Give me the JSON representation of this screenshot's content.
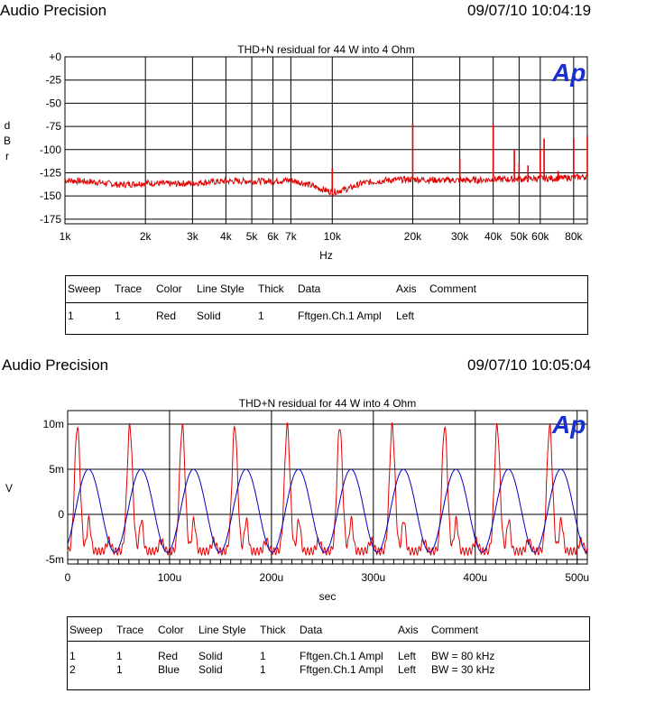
{
  "header1": {
    "brand": "Audio Precision",
    "timestamp": "09/07/10 10:04:19"
  },
  "header2": {
    "brand": "Audio Precision",
    "timestamp": "09/07/10 10:05:04"
  },
  "logo": "Ap",
  "colors": {
    "red": "#e00000",
    "blue": "#0000c0",
    "logo": "#1a2fd0"
  },
  "chart_data": [
    {
      "type": "line",
      "title": "THD+N residual for 44 W into 4 Ohm",
      "xlabel": "Hz",
      "ylabel": "d B r",
      "xscale": "log",
      "xlim": [
        1000,
        90000
      ],
      "ylim": [
        -180,
        0
      ],
      "x_ticks": [
        1000,
        2000,
        3000,
        4000,
        5000,
        6000,
        7000,
        10000,
        20000,
        30000,
        40000,
        50000,
        60000,
        80000
      ],
      "x_tick_labels": [
        "1k",
        "2k",
        "3k",
        "4k",
        "5k",
        "6k",
        "7k",
        "10k",
        "20k",
        "30k",
        "40k",
        "50k",
        "60k",
        "80k"
      ],
      "y_ticks": [
        0,
        -25,
        -50,
        -75,
        -100,
        -125,
        -150,
        -175
      ],
      "y_tick_labels": [
        "+0",
        "-25",
        "-50",
        "-75",
        "-100",
        "-125",
        "-150",
        "-175"
      ],
      "grid": true,
      "series": [
        {
          "color": "#e00000",
          "baseline": [
            [
              1000,
              -133
            ],
            [
              1300,
              -135
            ],
            [
              1600,
              -138
            ],
            [
              2000,
              -136
            ],
            [
              2500,
              -137
            ],
            [
              3000,
              -136
            ],
            [
              3500,
              -135
            ],
            [
              4000,
              -134
            ],
            [
              5000,
              -134
            ],
            [
              6000,
              -134
            ],
            [
              7000,
              -133
            ],
            [
              8000,
              -137
            ],
            [
              9000,
              -142
            ],
            [
              10000,
              -146
            ],
            [
              11500,
              -142
            ],
            [
              13000,
              -136
            ],
            [
              16000,
              -133
            ],
            [
              20000,
              -132
            ],
            [
              25000,
              -133
            ],
            [
              30000,
              -133
            ],
            [
              35000,
              -133
            ],
            [
              40000,
              -132
            ],
            [
              45000,
              -132
            ],
            [
              50000,
              -132
            ],
            [
              60000,
              -131
            ],
            [
              70000,
              -131
            ],
            [
              80000,
              -130
            ],
            [
              90000,
              -129
            ]
          ],
          "spikes": [
            [
              10000,
              -120
            ],
            [
              20000,
              -72
            ],
            [
              30000,
              -110
            ],
            [
              40000,
              -73
            ],
            [
              48000,
              -100
            ],
            [
              50000,
              -115
            ],
            [
              54000,
              -117
            ],
            [
              60000,
              -100
            ],
            [
              62000,
              -88
            ],
            [
              70000,
              -123
            ],
            [
              80000,
              -88
            ],
            [
              90000,
              -85
            ]
          ]
        }
      ]
    },
    {
      "type": "line",
      "title": "THD+N residual for 44 W into 4 Ohm",
      "xlabel": "sec",
      "ylabel": "V",
      "xlim": [
        0,
        0.00051
      ],
      "ylim": [
        -0.0055,
        0.0115
      ],
      "x_ticks": [
        0,
        0.0001,
        0.0002,
        0.0003,
        0.0004,
        0.0005
      ],
      "x_tick_labels": [
        "0",
        "100u",
        "200u",
        "300u",
        "400u",
        "500u"
      ],
      "y_ticks": [
        0.01,
        0.005,
        0,
        -0.005
      ],
      "y_tick_labels": [
        "10m",
        "5m",
        "0",
        "-5m"
      ],
      "grid": true,
      "series": [
        {
          "color": "#e00000",
          "period_s": 5.15e-05,
          "phase_s": 9.5e-06,
          "peak_v": 0.0098,
          "trough_v": -0.0041,
          "secondary_v": 0.0023
        },
        {
          "color": "#0000c0",
          "period_s": 5.15e-05,
          "phase_s": 2.05e-05,
          "amplitude_v": 0.0046,
          "offset_v": 0.0004
        }
      ]
    }
  ],
  "table1": {
    "headers": [
      "Sweep",
      "Trace",
      "Color",
      "Line Style",
      "Thick",
      "Data",
      "Axis",
      "Comment"
    ],
    "rows": [
      [
        "1",
        "1",
        "Red",
        "Solid",
        "1",
        "Fftgen.Ch.1 Ampl",
        "Left",
        ""
      ]
    ]
  },
  "table2": {
    "headers": [
      "Sweep",
      "Trace",
      "Color",
      "Line Style",
      "Thick",
      "Data",
      "Axis",
      "Comment"
    ],
    "rows": [
      [
        "1",
        "1",
        "Red",
        "Solid",
        "1",
        "Fftgen.Ch.1 Ampl",
        "Left",
        "BW = 80 kHz"
      ],
      [
        "2",
        "1",
        "Blue",
        "Solid",
        "1",
        "Fftgen.Ch.1 Ampl",
        "Left",
        "BW = 30 kHz"
      ]
    ]
  }
}
